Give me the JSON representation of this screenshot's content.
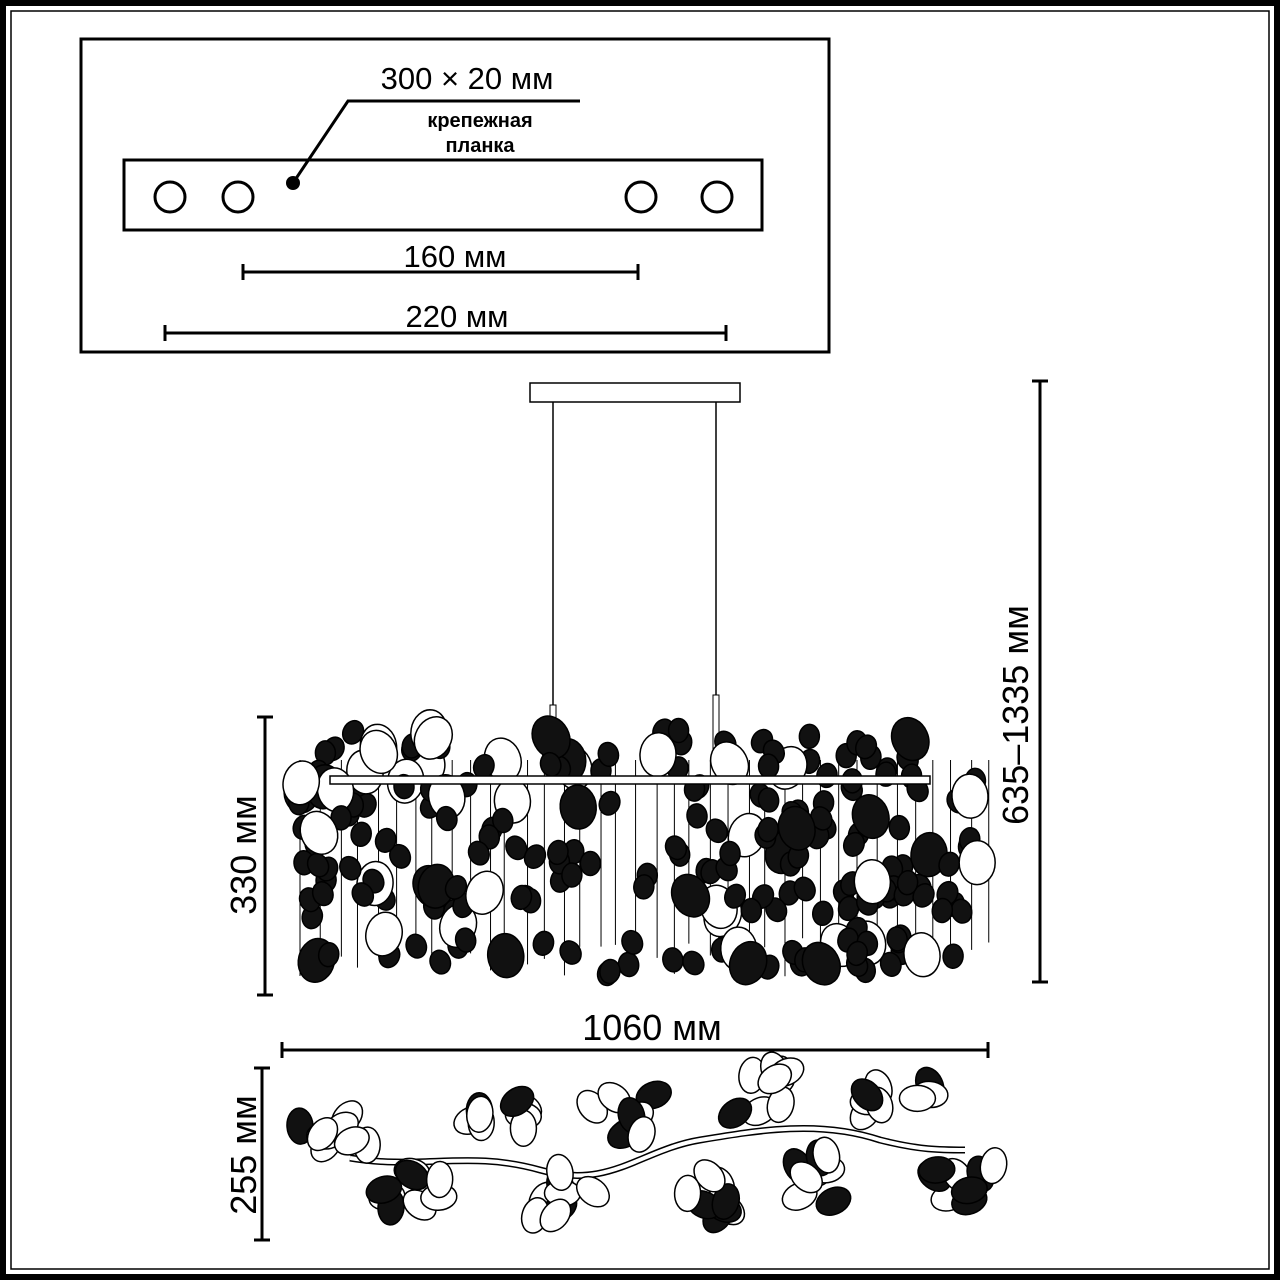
{
  "mounting_plate": {
    "size_label": "300 × 20 мм",
    "name_line1": "крепежная",
    "name_line2": "планка",
    "hole_spacing_inner": "160 мм",
    "hole_spacing_outer": "220 мм"
  },
  "dimensions": {
    "height_range": "635–1335 мм",
    "body_height": "330 мм",
    "width": "1060 мм",
    "depth": "255 мм"
  },
  "colors": {
    "line": "#000000",
    "background": "#ffffff"
  }
}
